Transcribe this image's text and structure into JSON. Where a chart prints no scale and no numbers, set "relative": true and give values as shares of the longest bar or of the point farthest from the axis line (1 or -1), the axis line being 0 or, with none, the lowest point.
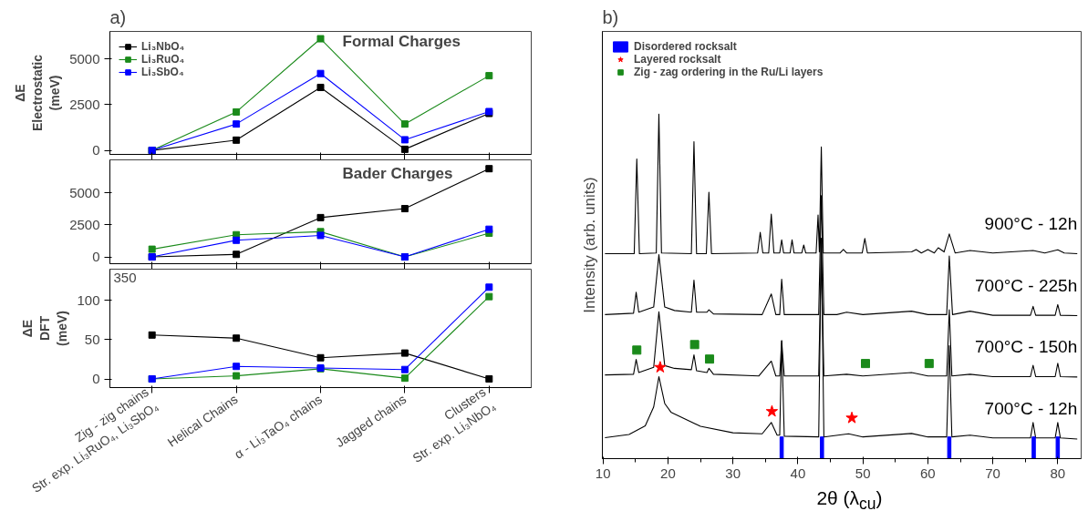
{
  "chart_data": [
    {
      "type": "line",
      "title": "a)",
      "ylabel": "ΔE Electrostatic (meV)",
      "annotations": [
        "Formal Charges"
      ],
      "categories": [
        null,
        null,
        null,
        null,
        null
      ],
      "ylim": [
        -220,
        6500
      ],
      "yticks": [
        0,
        2500,
        5000
      ],
      "tick_labels": "y",
      "legend": "top left",
      "marker": "square",
      "grid": false,
      "series": [
        {
          "name": "Li₃NbO₄",
          "color": "#000000",
          "values": [
            0,
            560,
            3440,
            60,
            2020
          ]
        },
        {
          "name": "Li₃RuO₄",
          "color": "#1a8a1a",
          "values": [
            0,
            2100,
            6100,
            1440,
            4080
          ]
        },
        {
          "name": "Li₃SbO₄",
          "color": "#0000ff",
          "values": [
            0,
            1440,
            4200,
            580,
            2120
          ]
        }
      ]
    },
    {
      "type": "line",
      "annotations": [
        "Bader Charges"
      ],
      "categories": [
        null,
        null,
        null,
        null,
        null
      ],
      "ylim": [
        -530,
        7580
      ],
      "yticks": [
        0,
        2500,
        5000
      ],
      "tick_labels": "y",
      "marker": "square",
      "grid": false,
      "series": [
        {
          "color": "#000000",
          "values": [
            0,
            200,
            3070,
            3770,
            6890
          ]
        },
        {
          "color": "#1a8a1a",
          "values": [
            600,
            1730,
            1970,
            0,
            1850
          ]
        },
        {
          "color": "#0000ff",
          "values": [
            0,
            1300,
            1680,
            0,
            2160
          ]
        }
      ]
    },
    {
      "type": "line",
      "ylabel": "ΔE DFT (meV)",
      "annotations": [
        "350",
        "Str. exp. Li₃RuO₄, Li₃SbO₄",
        "Str. exp. Li₃NbO₄"
      ],
      "categories": [
        "Zig - zig chains",
        "Helical Chains",
        "α - Li₃TaO₄ chains",
        "Jagged chains",
        "Clusters"
      ],
      "ylim": [
        -11,
        140
      ],
      "yticks": [
        0,
        50,
        100
      ],
      "marker": "square",
      "grid": false,
      "series": [
        {
          "color": "#000000",
          "values": [
            56,
            52,
            27,
            33,
            0
          ]
        },
        {
          "color": "#1a8a1a",
          "values": [
            0,
            4,
            13,
            1,
            105
          ]
        },
        {
          "color": "#0000ff",
          "values": [
            0,
            16,
            14,
            12,
            117
          ]
        }
      ]
    },
    {
      "type": "line",
      "title": "b)",
      "xlabel": "2θ (λ$_{cu}$)",
      "ylabel": "Intensity (arb. units)",
      "relative": true,
      "xlim": [
        9.9,
        83.6
      ],
      "xticks": [
        10,
        20,
        30,
        40,
        50,
        60,
        70,
        80
      ],
      "tick_labels": "x",
      "legend": "top left",
      "grid": false,
      "series": [
        {
          "name": "900°C - 12h",
          "color": "#000000",
          "x": [
            10.3,
            14.8,
            15.2,
            15.6,
            18.2,
            18.6,
            19.0,
            23.6,
            24.0,
            24.4,
            25.9,
            26.3,
            26.7,
            33.8,
            34.2,
            34.6,
            35.5,
            35.9,
            36.3,
            37.2,
            37.5,
            37.8,
            38.8,
            39.1,
            39.4,
            40.6,
            40.9,
            41.2,
            42.8,
            43.1,
            43.3,
            43.6,
            43.9,
            46.5,
            47.0,
            47.5,
            49.9,
            50.3,
            50.7,
            57.5,
            58.2,
            59.0,
            60.0,
            61.0,
            61.6,
            62.5,
            63.3,
            64.2,
            66.5,
            70,
            76.2,
            78,
            80.0,
            81,
            83.0
          ],
          "values": [
            0.595,
            0.595,
            0.87,
            0.595,
            0.597,
            1.0,
            0.597,
            0.595,
            0.92,
            0.595,
            0.595,
            0.773,
            0.595,
            0.597,
            0.657,
            0.597,
            0.597,
            0.71,
            0.597,
            0.597,
            0.635,
            0.597,
            0.597,
            0.635,
            0.597,
            0.597,
            0.62,
            0.597,
            0.597,
            0.707,
            0.6,
            0.905,
            0.597,
            0.597,
            0.607,
            0.597,
            0.597,
            0.639,
            0.597,
            0.6,
            0.607,
            0.597,
            0.607,
            0.597,
            0.612,
            0.6,
            0.652,
            0.597,
            0.604,
            0.597,
            0.604,
            0.597,
            0.606,
            0.597,
            0.595
          ]
        },
        {
          "name": "700°C - 225h",
          "color": "#000000",
          "x": [
            10.3,
            14.7,
            15.1,
            15.5,
            17.8,
            18.6,
            19.5,
            21,
            23.6,
            24.0,
            24.4,
            26.0,
            26.3,
            27,
            34.5,
            35.9,
            36.6,
            37.2,
            37.5,
            37.9,
            43.2,
            43.6,
            44.0,
            46,
            47.5,
            50,
            57.5,
            60,
            62.9,
            63.3,
            63.8,
            66.5,
            70,
            75.8,
            76.2,
            76.6,
            79.6,
            80.0,
            80.4,
            83
          ],
          "values": [
            0.418,
            0.422,
            0.483,
            0.425,
            0.44,
            0.592,
            0.44,
            0.43,
            0.425,
            0.518,
            0.425,
            0.425,
            0.432,
            0.42,
            0.418,
            0.478,
            0.418,
            0.418,
            0.521,
            0.418,
            0.418,
            0.763,
            0.418,
            0.418,
            0.425,
            0.418,
            0.428,
            0.418,
            0.418,
            0.588,
            0.418,
            0.428,
            0.416,
            0.416,
            0.442,
            0.416,
            0.416,
            0.447,
            0.416,
            0.415
          ]
        },
        {
          "name": "700°C - 150h",
          "color": "#000000",
          "x": [
            10.3,
            14.7,
            15.1,
            15.5,
            17.8,
            18.6,
            19.5,
            21,
            23.6,
            24.0,
            24.4,
            26.0,
            26.3,
            27,
            34,
            35.9,
            36.6,
            37.2,
            37.5,
            37.9,
            43.2,
            43.6,
            44.0,
            47.5,
            50,
            57.5,
            60,
            62.9,
            63.3,
            63.7,
            66.5,
            70,
            75.8,
            76.2,
            76.6,
            79.6,
            80.0,
            80.4,
            83
          ],
          "values": [
            0.243,
            0.245,
            0.288,
            0.25,
            0.265,
            0.426,
            0.27,
            0.262,
            0.258,
            0.301,
            0.255,
            0.25,
            0.262,
            0.245,
            0.24,
            0.283,
            0.24,
            0.24,
            0.342,
            0.24,
            0.24,
            0.6,
            0.24,
            0.245,
            0.24,
            0.25,
            0.24,
            0.24,
            0.432,
            0.24,
            0.245,
            0.238,
            0.238,
            0.271,
            0.238,
            0.238,
            0.277,
            0.238,
            0.237
          ]
        },
        {
          "name": "700°C - 12h",
          "color": "#000000",
          "x": [
            10.3,
            14,
            16.5,
            17.8,
            18.6,
            19.5,
            20.5,
            25,
            30,
            34.5,
            35.9,
            36.8,
            37.2,
            37.5,
            37.9,
            43.2,
            43.6,
            44.0,
            47.8,
            50,
            57.5,
            60,
            62.9,
            63.3,
            63.7,
            66.5,
            70,
            75.8,
            76.2,
            76.6,
            79.6,
            80.0,
            80.4,
            83
          ],
          "values": [
            0.061,
            0.07,
            0.095,
            0.15,
            0.238,
            0.16,
            0.134,
            0.094,
            0.075,
            0.072,
            0.105,
            0.068,
            0.068,
            0.342,
            0.065,
            0.063,
            0.64,
            0.063,
            0.072,
            0.063,
            0.073,
            0.063,
            0.063,
            0.328,
            0.063,
            0.068,
            0.06,
            0.06,
            0.105,
            0.06,
            0.06,
            0.105,
            0.06,
            0.057
          ]
        },
        {
          "name": "Disordered rocksalt",
          "type": "bar",
          "color": "#0000ff",
          "x": [
            37.5,
            43.7,
            63.3,
            76.3,
            80.0
          ],
          "values": [
            0.063,
            0.063,
            0.063,
            0.063,
            0.063
          ]
        },
        {
          "name": "Layered rocksalt",
          "type": "scatter",
          "marker": "star",
          "color": "#ff0000",
          "x": [
            18.8,
            36.0,
            48.3
          ],
          "values": [
            0.265,
            0.137,
            0.118
          ]
        },
        {
          "name": "Zig - zag ordering in the Ru/Li layers",
          "type": "scatter",
          "marker": "square",
          "color": "#1a8a1a",
          "x": [
            15.2,
            24.1,
            26.4,
            50.4,
            60.2
          ],
          "values": [
            0.315,
            0.331,
            0.289,
            0.276,
            0.276
          ]
        }
      ]
    }
  ]
}
